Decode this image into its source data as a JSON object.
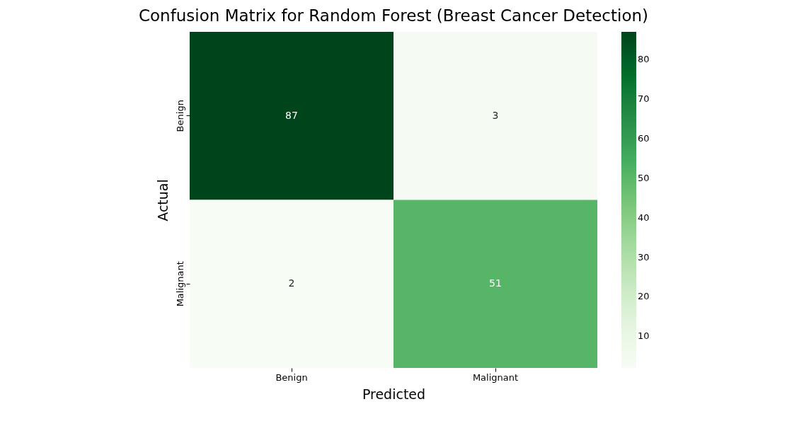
{
  "chart_data": {
    "type": "heatmap",
    "title": "Confusion Matrix for Random Forest (Breast Cancer Detection)",
    "xlabel": "Predicted",
    "ylabel": "Actual",
    "categories": [
      "Benign",
      "Malignant"
    ],
    "y_categories": [
      "Benign",
      "Malignant"
    ],
    "cells": [
      [
        87,
        3
      ],
      [
        2,
        51
      ]
    ],
    "clim": [
      2,
      87
    ],
    "cticks": [
      10,
      20,
      30,
      40,
      50,
      60,
      70,
      80
    ],
    "data_labels": true
  }
}
